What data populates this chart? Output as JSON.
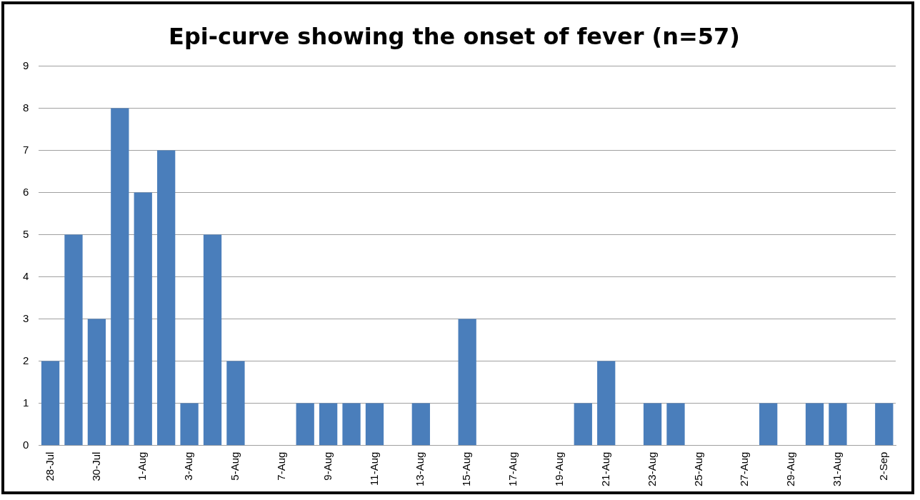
{
  "chart_data": {
    "type": "bar",
    "title": "Epi-curve showing the onset of fever (n=57)",
    "categories": [
      "28-Jul",
      null,
      "30-Jul",
      null,
      "1-Aug",
      null,
      "3-Aug",
      null,
      "5-Aug",
      null,
      "7-Aug",
      null,
      "9-Aug",
      null,
      "11-Aug",
      null,
      "13-Aug",
      null,
      "15-Aug",
      null,
      "17-Aug",
      null,
      "19-Aug",
      null,
      "21-Aug",
      null,
      "23-Aug",
      null,
      "25-Aug",
      null,
      "27-Aug",
      null,
      "29-Aug",
      null,
      "31-Aug",
      null,
      "2-Sep"
    ],
    "values": [
      2,
      5,
      3,
      8,
      6,
      7,
      1,
      5,
      2,
      0,
      0,
      1,
      1,
      1,
      1,
      0,
      1,
      0,
      3,
      0,
      0,
      0,
      0,
      1,
      2,
      0,
      1,
      1,
      0,
      0,
      0,
      1,
      0,
      1,
      1,
      0,
      1
    ],
    "color": "#4a7ebb",
    "ylim": [
      0,
      9
    ],
    "yticks": [
      0,
      1,
      2,
      3,
      4,
      5,
      6,
      7,
      8,
      9
    ],
    "grid": "y"
  }
}
